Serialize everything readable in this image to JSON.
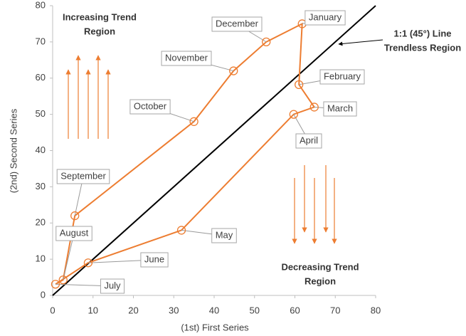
{
  "chart_data": {
    "type": "line",
    "xlabel": "(1st) First Series",
    "ylabel": "(2nd) Second Series",
    "point_labels": [
      "January",
      "February",
      "March",
      "April",
      "May",
      "June",
      "July",
      "August",
      "September",
      "October",
      "November",
      "December"
    ],
    "x": [
      61.8,
      61,
      64.8,
      59.7,
      31.9,
      8.8,
      0.7,
      2.6,
      5.5,
      35,
      44.8,
      52.9
    ],
    "series": [
      {
        "name": "Second Series",
        "color": "#ed7d31",
        "values": [
          75,
          58.2,
          52,
          50,
          18,
          9,
          3.1,
          4.3,
          22,
          48,
          62,
          70
        ]
      }
    ],
    "closed_loop": true,
    "reference_line": {
      "x": [
        0,
        80
      ],
      "y": [
        0,
        80
      ],
      "color": "#000000"
    },
    "annotations": [
      {
        "lines": [
          "Increasing Trend",
          "Region"
        ]
      },
      {
        "lines": [
          "1:1 (45°) Line",
          "Trendless Region"
        ]
      },
      {
        "lines": [
          "Decreasing Trend",
          "Region"
        ]
      }
    ],
    "xlim": [
      0,
      80
    ],
    "xticks": [
      0,
      10,
      20,
      30,
      40,
      50,
      60,
      70,
      80
    ],
    "ylim": [
      0,
      80
    ],
    "yticks": [
      0,
      10,
      20,
      30,
      40,
      50,
      60,
      70,
      80
    ],
    "grid": false
  }
}
